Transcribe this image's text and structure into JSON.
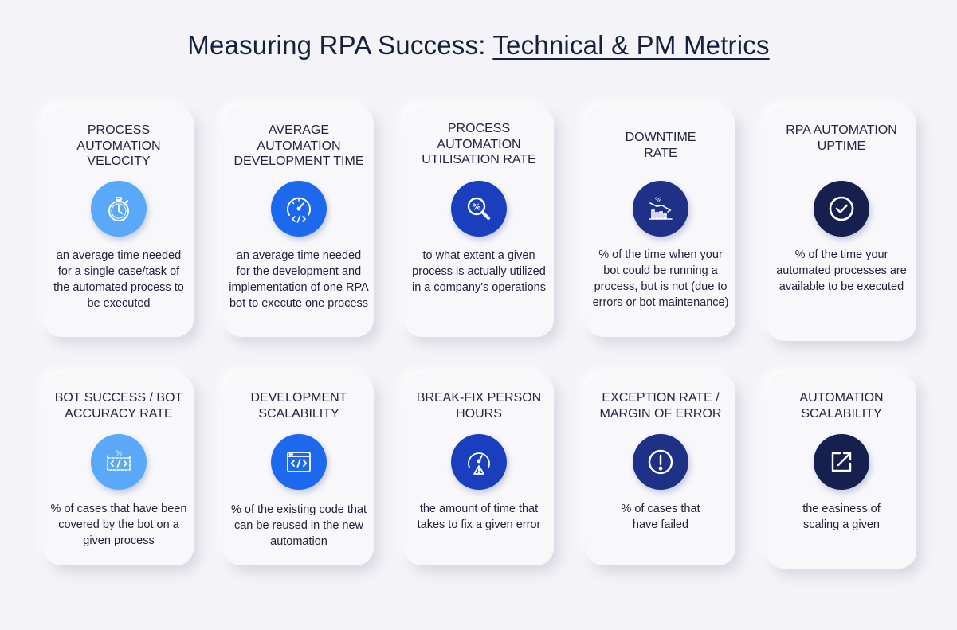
{
  "title": {
    "plain": "Measuring RPA Success: ",
    "underlined": "Technical & PM Metrics"
  },
  "cards": [
    {
      "heading": "PROCESS AUTOMATION VELOCITY",
      "icon": "stopwatch-icon",
      "color": "#5aa9f8",
      "description": "an average time needed for a single case/task of the automated process to be executed"
    },
    {
      "heading": "AVERAGE AUTOMATION DEVELOPMENT TIME",
      "icon": "gauge-code-icon",
      "color": "#1d69ee",
      "description": "an average time needed for the development and implementation of one RPA bot to execute one process"
    },
    {
      "heading": "PROCESS AUTOMATION UTILISATION RATE",
      "icon": "percent-magnifier-icon",
      "color": "#1a3fbe",
      "description": "to what extent a given process is actually utilized in a company's operations"
    },
    {
      "heading": "DOWNTIME RATE",
      "icon": "declining-chart-icon",
      "color": "#1e3187",
      "description": "% of the time when your bot could be running a process, but is not (due to errors or bot maintenance)"
    },
    {
      "heading": "RPA AUTOMATION UPTIME",
      "icon": "check-circle-icon",
      "color": "#15204f",
      "description": "% of the time your automated processes are available to be executed"
    },
    {
      "heading": "BOT SUCCESS / BOT ACCURACY RATE",
      "icon": "code-window-percent-icon",
      "color": "#5aa9f8",
      "description": "% of cases that have been covered by the bot on a given process"
    },
    {
      "heading": "DEVELOPMENT SCALABILITY",
      "icon": "code-window-icon",
      "color": "#1d69ee",
      "description": "% of the existing code that can be reused in the new automation"
    },
    {
      "heading": "BREAK-FIX PERSON HOURS",
      "icon": "gauge-warning-icon",
      "color": "#1a3fbe",
      "description": "the amount of time that takes to fix a given error"
    },
    {
      "heading": "EXCEPTION RATE / MARGIN OF ERROR",
      "icon": "exclamation-icon",
      "color": "#1e3187",
      "description": "% of cases that have failed"
    },
    {
      "heading": "AUTOMATION SCALABILITY",
      "icon": "external-link-icon",
      "color": "#15204f",
      "description": "the easiness of scaling a given"
    }
  ]
}
